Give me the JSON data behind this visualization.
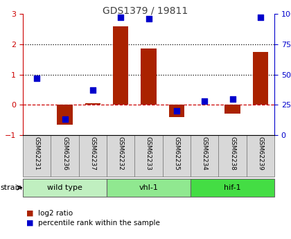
{
  "title": "GDS1379 / 19811",
  "samples": [
    "GSM62231",
    "GSM62236",
    "GSM62237",
    "GSM62232",
    "GSM62233",
    "GSM62235",
    "GSM62234",
    "GSM62238",
    "GSM62239"
  ],
  "log2_ratio": [
    0.0,
    -0.65,
    0.05,
    2.6,
    1.85,
    -0.4,
    0.0,
    -0.3,
    1.75
  ],
  "percentile_rank": [
    47,
    13,
    37,
    97,
    96,
    20,
    28,
    30,
    97
  ],
  "groups": [
    {
      "label": "wild type",
      "start": 0,
      "end": 3,
      "color": "#c0efc0"
    },
    {
      "label": "vhl-1",
      "start": 3,
      "end": 6,
      "color": "#90e890"
    },
    {
      "label": "hif-1",
      "start": 6,
      "end": 9,
      "color": "#44dd44"
    }
  ],
  "ylim": [
    -1,
    3
  ],
  "y2lim": [
    0,
    100
  ],
  "bar_color": "#aa2200",
  "dot_color": "#0000cc",
  "hline_color": "#cc0000",
  "dotted_line_color": "#000000",
  "title_color": "#404040",
  "left_tick_color": "#cc0000",
  "right_tick_color": "#0000cc",
  "bg_color": "#ffffff",
  "label_bg_color": "#d8d8d8",
  "strain_label": "strain",
  "legend_log2": "log2 ratio",
  "legend_pct": "percentile rank within the sample",
  "bar_width": 0.55
}
